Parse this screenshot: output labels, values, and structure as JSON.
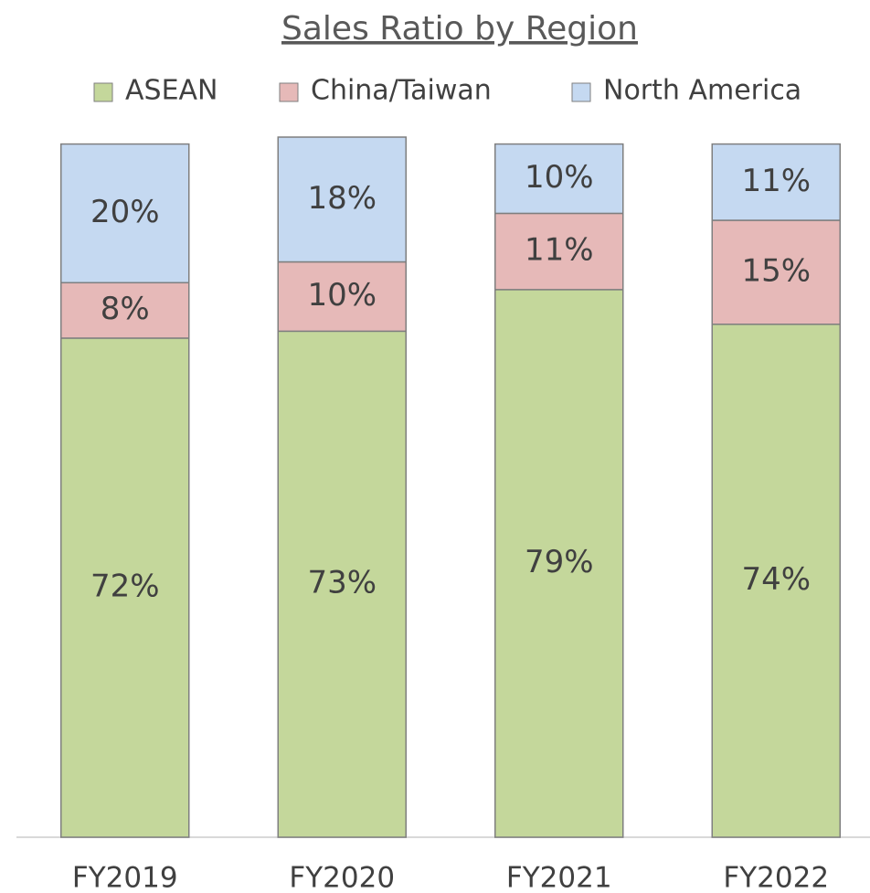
{
  "chart_data": {
    "type": "stacked_bar",
    "title": "Sales Ratio by Region",
    "categories": [
      "FY2019",
      "FY2020",
      "FY2021",
      "FY2022"
    ],
    "series": [
      {
        "name": "ASEAN",
        "color": "#c4d79b",
        "values": [
          72,
          73,
          79,
          74
        ],
        "value_labels": [
          "72%",
          "73%",
          "79%",
          "74%"
        ]
      },
      {
        "name": "China/Taiwan",
        "color": "#e6b9b8",
        "values": [
          8,
          10,
          11,
          15
        ],
        "value_labels": [
          "8%",
          "10%",
          "11%",
          "15%"
        ]
      },
      {
        "name": "North America",
        "color": "#c5d9f1",
        "values": [
          20,
          18,
          10,
          11
        ],
        "value_labels": [
          "20%",
          "18%",
          "10%",
          "11%"
        ]
      }
    ],
    "legend": "top"
  }
}
